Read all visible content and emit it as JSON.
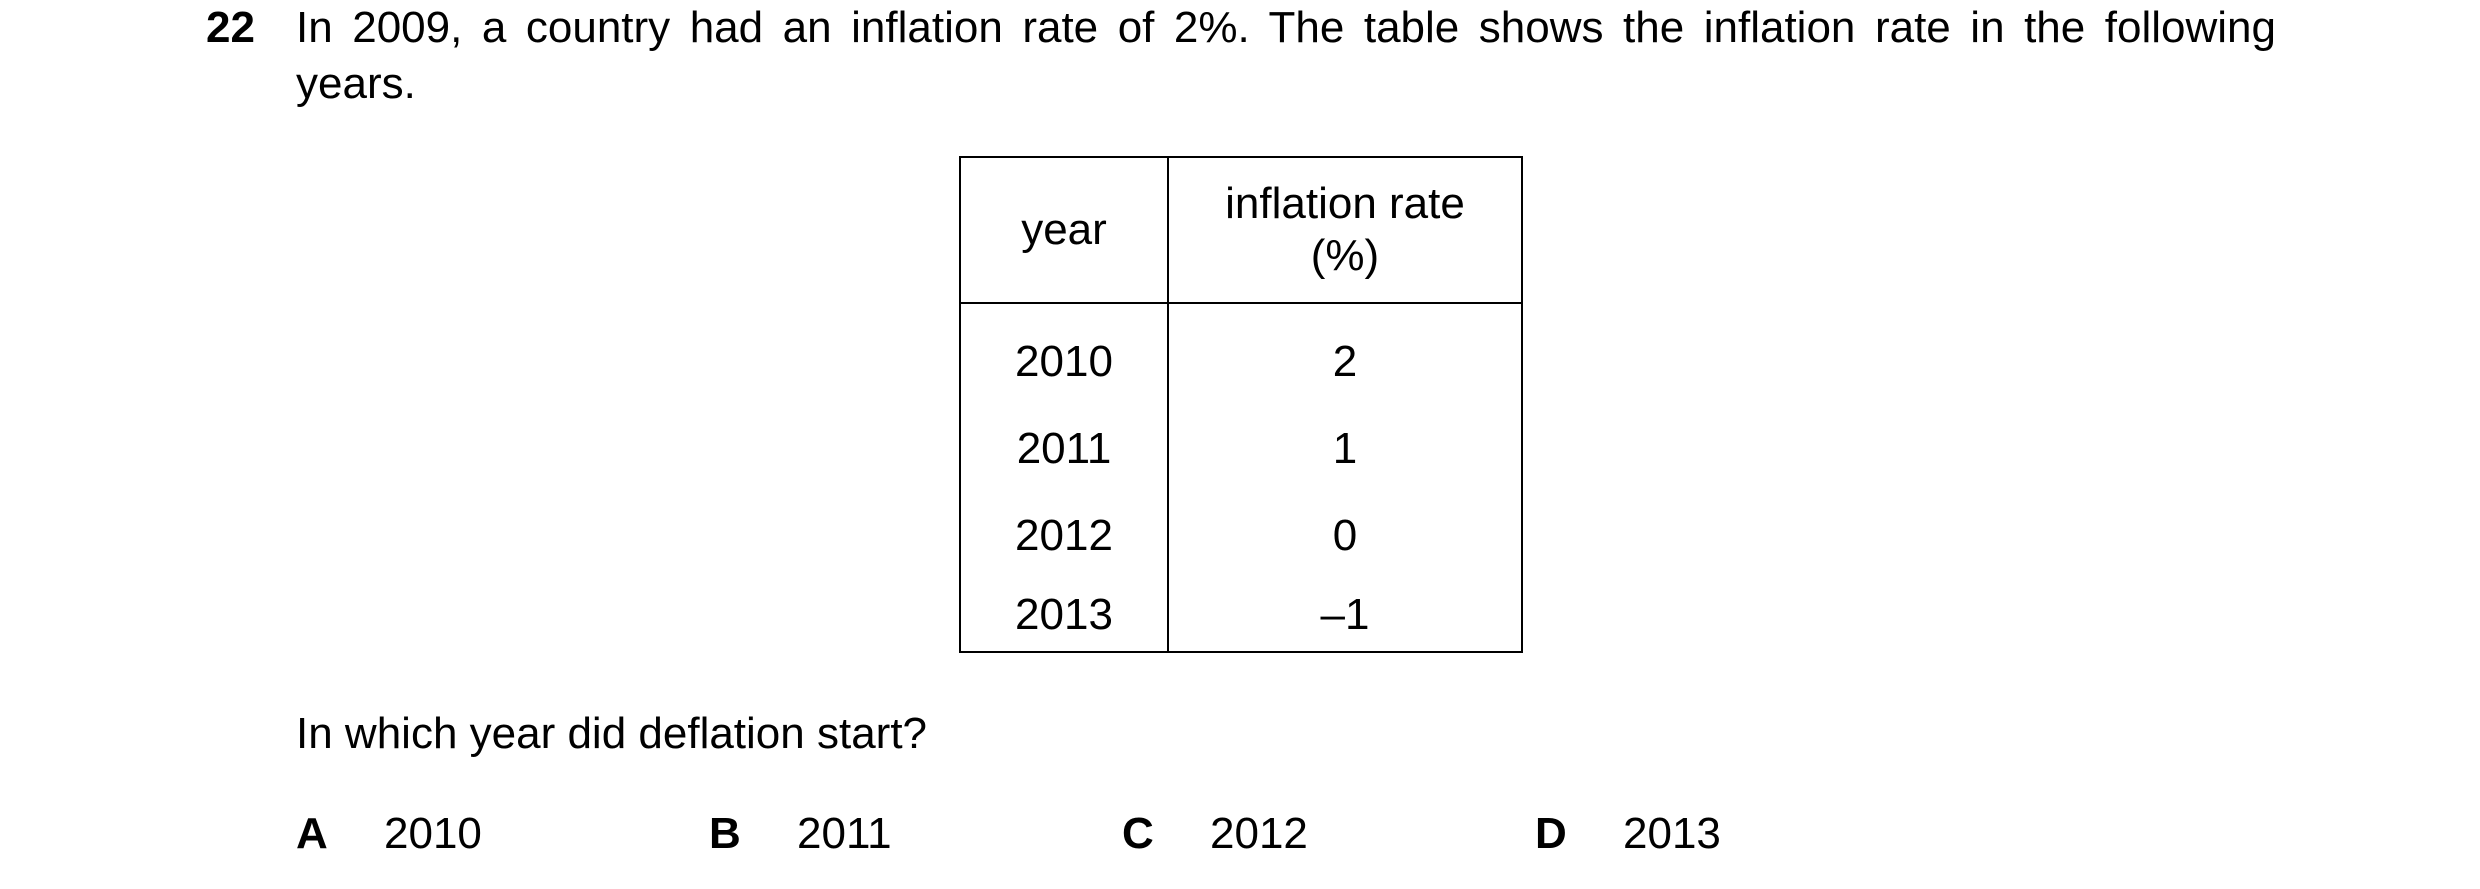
{
  "question_number": "22",
  "stem": "In 2009, a country had an inflation rate of 2%. The table shows the inflation rate in the following years.",
  "table": {
    "headers": [
      "year",
      "inflation rate (%)"
    ],
    "header_rate_line1": "inflation rate",
    "header_rate_line2": "(%)",
    "rows": [
      {
        "year": "2010",
        "rate": "2"
      },
      {
        "year": "2011",
        "rate": "1"
      },
      {
        "year": "2012",
        "rate": "0"
      },
      {
        "year": "2013",
        "rate": "–1"
      }
    ]
  },
  "question": "In which year did deflation start?",
  "options": [
    {
      "letter": "A",
      "text": "2010"
    },
    {
      "letter": "B",
      "text": "2011"
    },
    {
      "letter": "C",
      "text": "2012"
    },
    {
      "letter": "D",
      "text": "2013"
    }
  ]
}
